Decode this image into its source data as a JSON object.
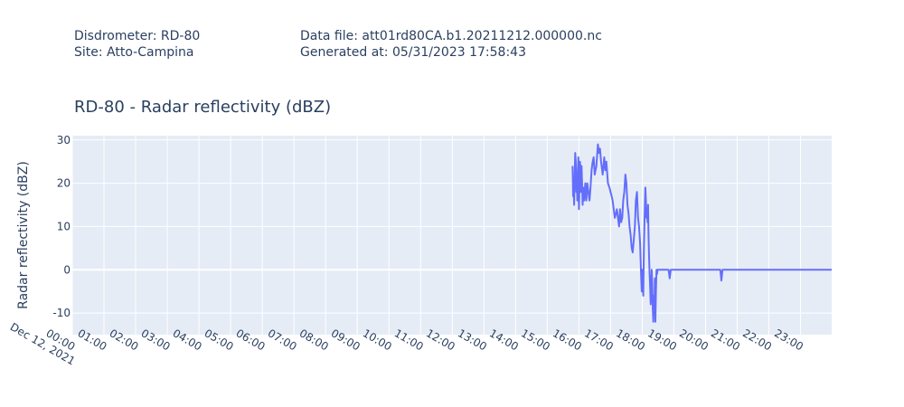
{
  "header": {
    "disdrometer": "Disdrometer: RD-80",
    "site": "Site: Atto-Campina",
    "data_file": "Data file: att01rd80CA.b1.20211212.000000.nc",
    "generated_at": "Generated at: 05/31/2023 17:58:43"
  },
  "colors": {
    "plot_bg": "#e5ecf6",
    "grid": "#ffffff",
    "line": "#636efa",
    "text": "#2a3f5f"
  },
  "chart_data": {
    "type": "line",
    "title": "RD-80 - Radar reflectivity  (dBZ)",
    "xlabel": "",
    "ylabel": "Radar reflectivity  (dBZ)",
    "x_date_label": "Dec 12, 2021",
    "xlim": [
      "00:00",
      "23:59"
    ],
    "ylim": [
      -15,
      31
    ],
    "grid": true,
    "x_ticks": [
      "00:00",
      "01:00",
      "02:00",
      "03:00",
      "04:00",
      "05:00",
      "06:00",
      "07:00",
      "08:00",
      "09:00",
      "10:00",
      "11:00",
      "12:00",
      "13:00",
      "14:00",
      "15:00",
      "16:00",
      "17:00",
      "18:00",
      "19:00",
      "20:00",
      "21:00",
      "22:00",
      "23:00"
    ],
    "y_ticks": [
      -10,
      0,
      10,
      20,
      30
    ],
    "series": [
      {
        "x": [
          "15:48",
          "15:49",
          "15:50",
          "15:51",
          "15:52",
          "15:53",
          "15:54",
          "15:55",
          "15:56",
          "15:57",
          "15:58",
          "15:59",
          "16:00",
          "16:01",
          "16:02",
          "16:03",
          "16:04",
          "16:05",
          "16:06",
          "16:07",
          "16:08",
          "16:09",
          "16:10",
          "16:12",
          "16:14",
          "16:16",
          "16:18",
          "16:20",
          "16:22",
          "16:24",
          "16:26",
          "16:28",
          "16:30",
          "16:33",
          "16:36",
          "16:38",
          "16:40",
          "16:42",
          "16:45",
          "16:48",
          "16:50",
          "16:52",
          "16:55",
          "16:58",
          "17:00",
          "17:02",
          "17:04",
          "17:06",
          "17:08",
          "17:10",
          "17:12",
          "17:14",
          "17:16",
          "17:18",
          "17:20",
          "17:22",
          "17:24",
          "17:26",
          "17:28",
          "17:30",
          "17:32",
          "17:34",
          "17:36",
          "17:38",
          "17:40",
          "17:42",
          "17:44",
          "17:46",
          "17:48",
          "17:50",
          "17:52",
          "17:54",
          "17:56",
          "17:57",
          "17:58",
          "17:59",
          "18:00",
          "18:01",
          "18:02",
          "18:03",
          "18:04",
          "18:05",
          "18:06",
          "18:07",
          "18:08",
          "18:09",
          "18:10",
          "18:11",
          "18:12",
          "18:13",
          "18:14",
          "18:15",
          "18:16",
          "18:17",
          "18:18",
          "18:19",
          "18:20",
          "18:21",
          "18:22",
          "18:23",
          "18:24",
          "18:25",
          "18:26",
          "18:27",
          "18:28",
          "18:29",
          "18:30",
          "18:40",
          "18:50",
          "18:52",
          "18:54",
          "18:56",
          "19:00",
          "20:00",
          "20:28",
          "20:30",
          "20:32",
          "20:36",
          "21:00",
          "22:00",
          "23:00",
          "23:59"
        ],
        "y": [
          24,
          17,
          20,
          15,
          22,
          27,
          25,
          18,
          21,
          16,
          23,
          26,
          14,
          19,
          25,
          22,
          18,
          24,
          20,
          15,
          19,
          17,
          16,
          20,
          16,
          20,
          18,
          16,
          19,
          23,
          25,
          26,
          22,
          24,
          29,
          27,
          28,
          25,
          22,
          26,
          23,
          25,
          20,
          19,
          18,
          17,
          16,
          14,
          12,
          13,
          14,
          12,
          10,
          14,
          11,
          12,
          16,
          18,
          22,
          20,
          15,
          13,
          10,
          8,
          5,
          4,
          7,
          10,
          16,
          18,
          12,
          10,
          6,
          2,
          -2,
          -5,
          0,
          -3,
          -6,
          4,
          10,
          15,
          19,
          16,
          12,
          14,
          11,
          15,
          8,
          3,
          -1,
          -4,
          -8,
          -5,
          0,
          -3,
          -9,
          -12,
          -6,
          -10,
          -2,
          -12,
          -5,
          0,
          -1,
          0,
          0,
          0,
          0,
          -2,
          0,
          0,
          0,
          0,
          0,
          -2.5,
          0,
          0,
          0,
          0,
          0,
          0
        ]
      }
    ]
  }
}
